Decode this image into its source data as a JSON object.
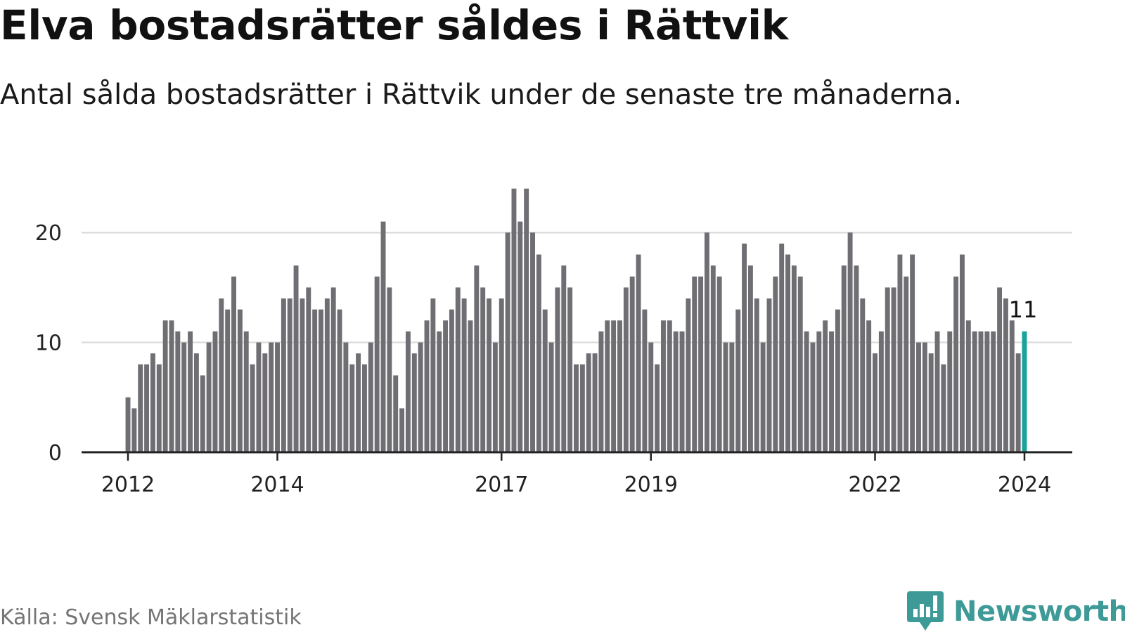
{
  "title": "Elva bostadsrätter såldes i Rättvik",
  "subtitle": "Antal sålda bostadsrätter i Rättvik under de senaste tre månaderna.",
  "source": "Källa: Svensk Mäklarstatistik",
  "brand": "Newsworthy",
  "colors": {
    "bar": "#6e6e73",
    "highlight": "#1aa39a",
    "grid": "#dddddd",
    "axis": "#222222",
    "brand": "#3d9a97"
  },
  "chart_data": {
    "type": "bar",
    "x_start": "2012-01",
    "x_end": "2024-01",
    "ylim": [
      0,
      25
    ],
    "yticks": [
      0,
      10,
      20
    ],
    "xticks": [
      {
        "label": "2012",
        "date": "2012-01"
      },
      {
        "label": "2014",
        "date": "2014-01"
      },
      {
        "label": "2017",
        "date": "2017-01"
      },
      {
        "label": "2019",
        "date": "2019-01"
      },
      {
        "label": "2022",
        "date": "2022-01"
      },
      {
        "label": "2024",
        "date": "2024-01"
      }
    ],
    "values": [
      5,
      4,
      8,
      8,
      9,
      8,
      12,
      12,
      11,
      10,
      11,
      9,
      7,
      10,
      11,
      14,
      13,
      16,
      13,
      11,
      8,
      10,
      9,
      10,
      10,
      14,
      14,
      17,
      14,
      15,
      13,
      13,
      14,
      15,
      13,
      10,
      8,
      9,
      8,
      10,
      16,
      21,
      15,
      7,
      4,
      11,
      9,
      10,
      12,
      14,
      11,
      12,
      13,
      15,
      14,
      12,
      17,
      15,
      14,
      10,
      14,
      20,
      24,
      21,
      24,
      20,
      18,
      13,
      10,
      15,
      17,
      15,
      8,
      8,
      9,
      9,
      11,
      12,
      12,
      12,
      15,
      16,
      18,
      13,
      10,
      8,
      12,
      12,
      11,
      11,
      14,
      16,
      16,
      20,
      17,
      16,
      10,
      10,
      13,
      19,
      17,
      14,
      10,
      14,
      16,
      19,
      18,
      17,
      16,
      11,
      10,
      11,
      12,
      11,
      13,
      17,
      20,
      17,
      14,
      12,
      9,
      11,
      15,
      15,
      18,
      16,
      18,
      10,
      10,
      9,
      11,
      8,
      11,
      16,
      18,
      12,
      11,
      11,
      11,
      11,
      15,
      14,
      12,
      9,
      11
    ],
    "highlight_last": true,
    "last_label": "11"
  }
}
